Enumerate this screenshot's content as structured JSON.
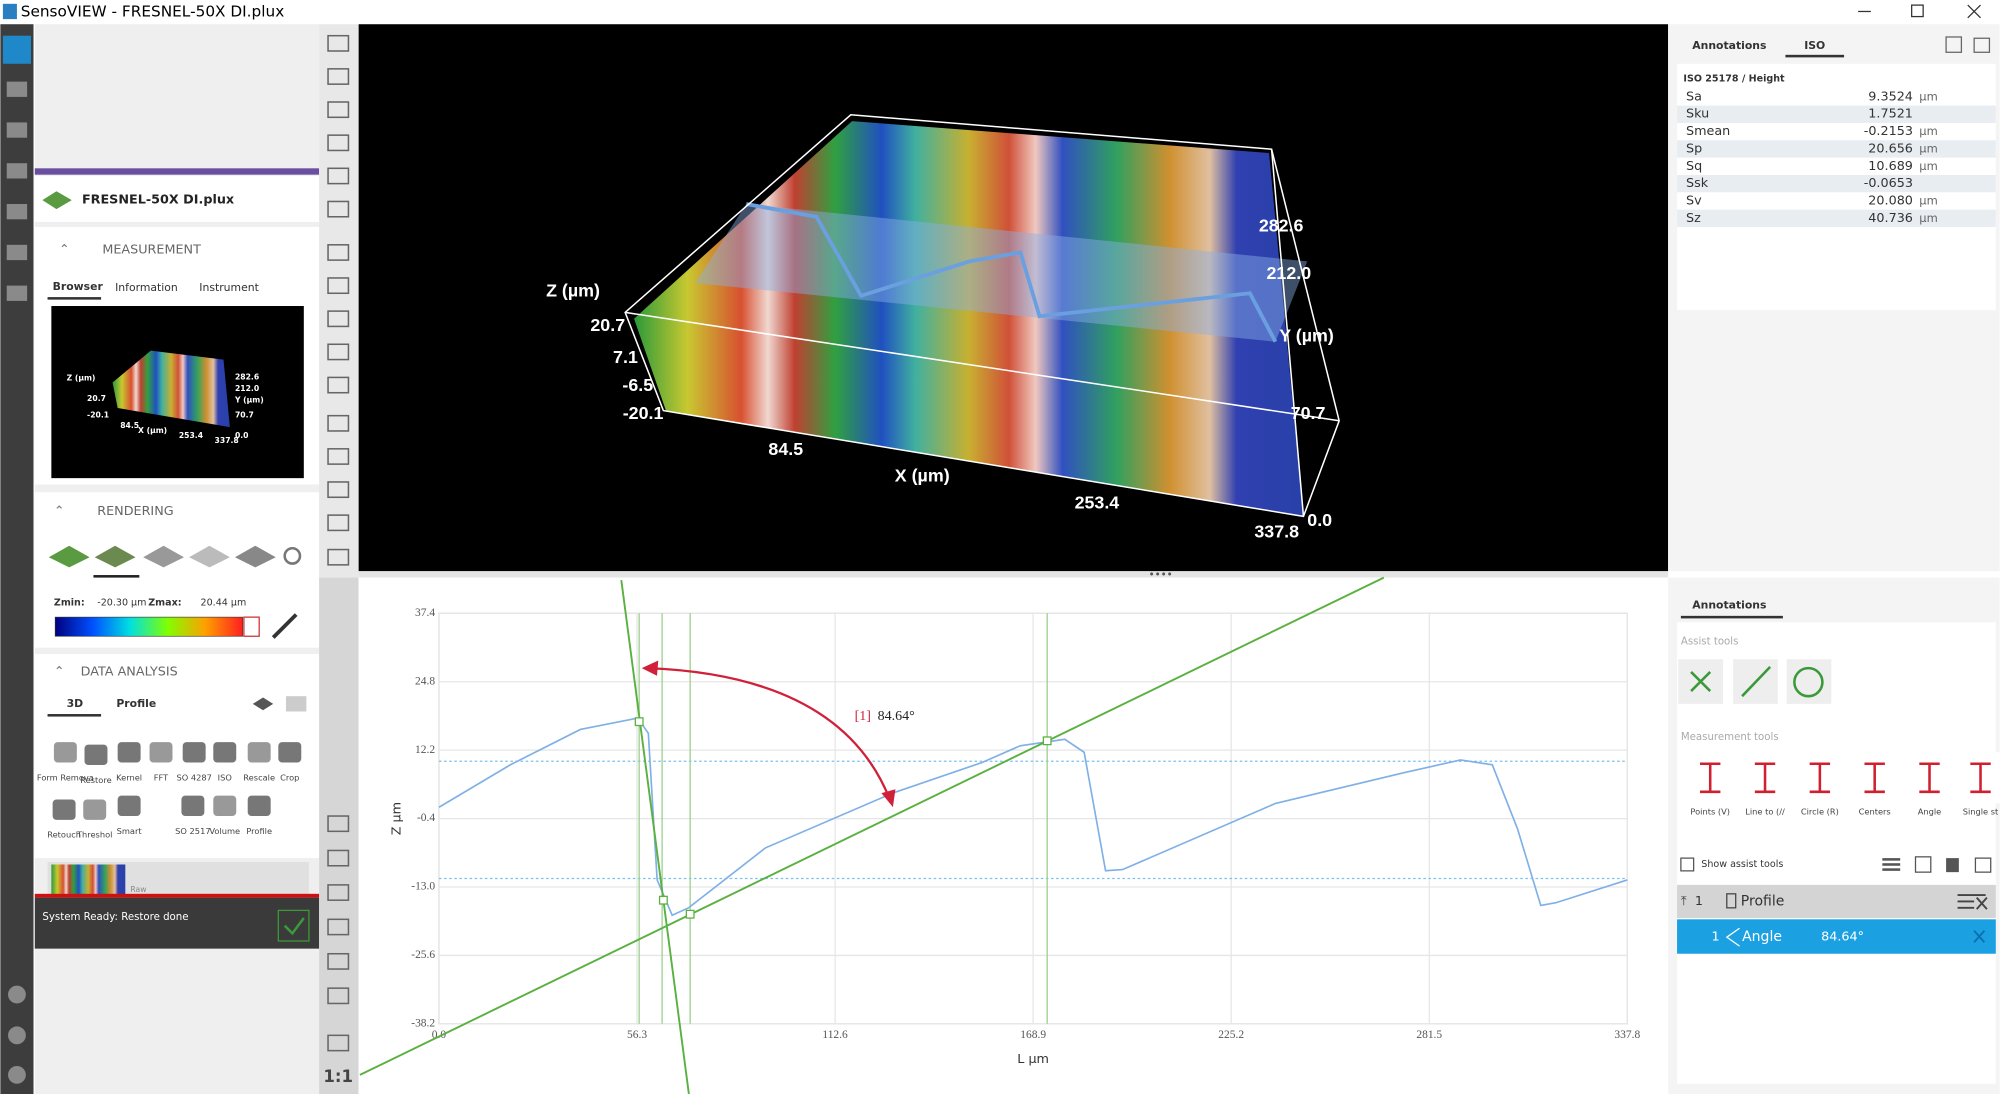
{
  "window": {
    "title": "SensoVIEW - FRESNEL-50X DI.plux"
  },
  "left_panel": {
    "file": "FRESNEL-50X DI.plux",
    "measurement": {
      "heading": "MEASUREMENT",
      "tabs": [
        "Browser",
        "Information",
        "Instrument"
      ]
    },
    "thumbnail": {
      "labels": [
        "Z (µm)",
        "20.7",
        "-20.1",
        "84.5",
        "X (µm)",
        "253.4",
        "337.8",
        "282.6",
        "212.0",
        "Y (µm)",
        "70.7",
        "0.0"
      ]
    },
    "rendering": {
      "heading": "RENDERING",
      "zmin_label": "Zmin:",
      "zmin": "-20.30 µm",
      "zmax_label": "Zmax:",
      "zmax": "20.44 µm"
    },
    "data_analysis": {
      "heading": "DATA ANALYSIS",
      "tabs": [
        "3D",
        "Profile"
      ],
      "tools": [
        "Form Remova",
        "Restore",
        "Kernel",
        "FFT",
        "SO 4287",
        "ISO",
        "Rescale",
        "Crop",
        "Retouch",
        "Threshol",
        "Smart",
        "SO 2517",
        "Volume",
        "Profile"
      ]
    },
    "layer": "Raw",
    "status": "System Ready: Restore done"
  },
  "toolbar": {
    "zoom": "1:1"
  },
  "view3d": {
    "labels": [
      "Z (µm)",
      "20.7",
      "7.1",
      "-6.5",
      "-20.1",
      "84.5",
      "X (µm)",
      "253.4",
      "337.8",
      "0.0",
      "70.7",
      "Y (µm)",
      "212.0",
      "282.6"
    ]
  },
  "iso_panel": {
    "tabs": [
      "Annotations",
      "ISO"
    ],
    "heading": "ISO 25178 / Height",
    "rows": [
      [
        "Sa",
        "9.3524",
        "µm"
      ],
      [
        "Sku",
        "1.7521"
      ],
      [
        "Smean",
        "-0.2153",
        "µm"
      ],
      [
        "Sp",
        "20.656",
        "µm"
      ],
      [
        "Sq",
        "10.689",
        "µm"
      ],
      [
        "Ssk",
        "-0.0653"
      ],
      [
        "Sv",
        "20.080",
        "µm"
      ],
      [
        "Sz",
        "40.736",
        "µm"
      ]
    ]
  },
  "profile_chart": {
    "type": "line",
    "x_label": "L µm",
    "y_label": "Z µm",
    "xlim": [
      0,
      337.8
    ],
    "ylim": [
      -38.2,
      37.4
    ],
    "xticks": [
      {
        "value": 0,
        "label": "0.0"
      },
      56.3,
      112.6,
      168.9,
      225.2,
      281.5,
      337.8
    ],
    "yticks": [
      37.4,
      24.8,
      12.2,
      -0.4,
      {
        "value": -13,
        "label": "-13.0"
      },
      -25.6,
      -38.2
    ],
    "grid": true,
    "x": [
      0,
      20.3,
      40.2,
      56.5,
      59.5,
      62,
      66.3,
      71,
      92.8,
      129,
      154.3,
      165.2,
      177.9,
      183.4,
      189.5,
      194.3,
      237.8,
      274,
      290.4,
      299.4,
      306.6,
      313.2,
      317.5,
      337.8
    ],
    "series": [
      {
        "color": "#7fb0e6",
        "values": [
          1.7,
          9.5,
          16.0,
          18.1,
          15.3,
          -11.7,
          -18.2,
          -16.8,
          -5.8,
          4.3,
          9.9,
          13.0,
          14.2,
          11.8,
          -10.0,
          -9.8,
          2.4,
          8.0,
          10.4,
          9.5,
          -2.3,
          -16.4,
          -15.9,
          -11.7
        ]
      }
    ],
    "annotation_id": "[1]",
    "annotation_value": "84.64°"
  },
  "annotations_panel": {
    "tab": "Annotations",
    "assist_heading": "Assist tools",
    "measure_heading": "Measurement tools",
    "tools": [
      "Points (V)",
      "Line to (//",
      "Circle (R)",
      "Centers",
      "Angle",
      "Single st"
    ],
    "show_assist": "Show assist tools",
    "tree": {
      "group_index": "1",
      "group": "Profile",
      "item_index": "1",
      "item": "Angle",
      "item_value": "84.64°"
    }
  }
}
